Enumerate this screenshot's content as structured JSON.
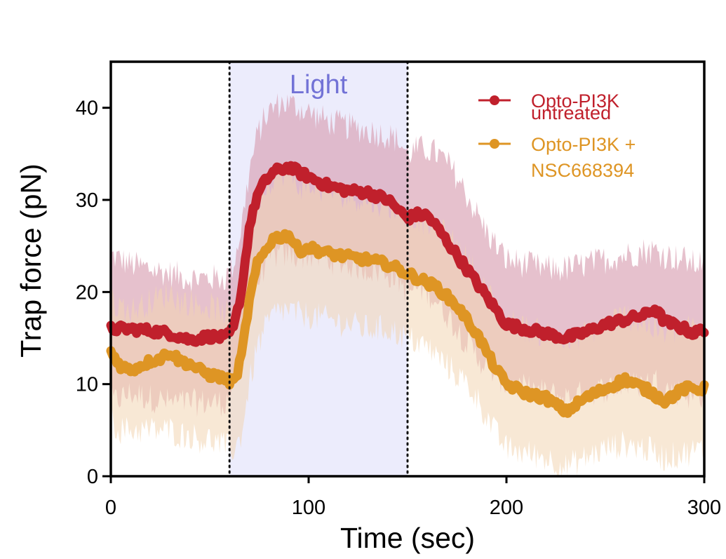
{
  "chart_data": {
    "type": "line",
    "title": "",
    "xlabel": "Time (sec)",
    "ylabel": "Trap force (pN)",
    "xlim": [
      0,
      300
    ],
    "ylim": [
      0,
      45
    ],
    "x_ticks": [
      0,
      100,
      200,
      300
    ],
    "y_ticks": [
      0,
      10,
      20,
      30,
      40
    ],
    "x_tick_labels": [
      "0",
      "100",
      "200",
      "300"
    ],
    "y_tick_labels": [
      "0",
      "10",
      "20",
      "30",
      "40"
    ],
    "grid": false,
    "legend_position": "top-right",
    "annotation": {
      "label": "Light",
      "x_start": 60,
      "x_end": 150,
      "shade_color": "#ececfc",
      "text_color": "#7272d6"
    },
    "series": [
      {
        "name": "Opto-PI3K untreated",
        "legend_lines": [
          "Opto-PI3K",
          "untreated"
        ],
        "color": "#c0202c",
        "band_color": "#d9a0b2",
        "x": [
          0,
          10,
          20,
          30,
          40,
          50,
          58,
          62,
          66,
          70,
          74,
          78,
          82,
          86,
          90,
          95,
          100,
          110,
          120,
          130,
          140,
          145,
          150,
          155,
          160,
          165,
          170,
          175,
          180,
          185,
          190,
          195,
          200,
          210,
          220,
          230,
          240,
          250,
          260,
          270,
          275,
          280,
          290,
          295,
          300
        ],
        "mean": [
          16,
          16,
          15.8,
          15.5,
          14.8,
          15.2,
          15,
          16,
          20,
          27,
          30.5,
          32,
          33,
          33.3,
          33.6,
          33,
          32.5,
          31.5,
          31,
          30.8,
          30,
          29,
          28,
          28.4,
          28.3,
          27,
          25.5,
          24,
          22.5,
          21,
          19.5,
          18,
          16.5,
          16,
          15.5,
          15,
          15.6,
          16.5,
          17,
          17.5,
          18.2,
          16.8,
          16,
          15.5,
          16
        ],
        "lower": [
          8,
          9,
          8.5,
          8,
          8,
          8,
          8,
          10,
          14,
          18,
          21,
          23,
          24,
          24,
          24,
          24,
          24,
          23.5,
          23,
          22.5,
          22,
          21.5,
          20,
          20.5,
          20,
          19,
          17.5,
          16,
          14.5,
          13,
          12,
          11,
          10,
          9.5,
          9,
          8.5,
          9,
          9.5,
          10,
          10,
          10.5,
          9.5,
          9,
          8.5,
          9
        ],
        "upper": [
          24,
          23,
          22.5,
          22,
          21.5,
          21.5,
          21.5,
          23,
          27,
          33,
          37,
          39,
          40,
          40.5,
          40.5,
          40,
          39.5,
          38.5,
          38,
          37.5,
          37,
          36.5,
          35,
          35.5,
          35.5,
          35,
          34,
          32.5,
          30.5,
          28.5,
          26.5,
          25,
          23.5,
          23,
          22.5,
          22.5,
          23,
          23.5,
          24,
          24.5,
          24.5,
          24,
          23.5,
          23,
          23.5
        ]
      },
      {
        "name": "Opto-PI3K + NSC668394",
        "legend_lines": [
          "Opto-PI3K +",
          "NSC668394"
        ],
        "color": "#de9524",
        "band_color": "#f3d5b2",
        "x": [
          0,
          5,
          10,
          15,
          20,
          25,
          30,
          35,
          40,
          45,
          50,
          55,
          60,
          63,
          66,
          70,
          74,
          78,
          82,
          86,
          90,
          95,
          100,
          110,
          120,
          130,
          140,
          145,
          150,
          155,
          160,
          165,
          170,
          175,
          180,
          185,
          190,
          195,
          200,
          210,
          220,
          230,
          240,
          250,
          260,
          270,
          280,
          290,
          300
        ],
        "mean": [
          13.5,
          12,
          11.5,
          12,
          12.5,
          12.8,
          13.5,
          12.5,
          12.2,
          11.5,
          11,
          10.8,
          10.3,
          10.5,
          13,
          19,
          23,
          24.5,
          25.8,
          26,
          26.2,
          24.5,
          24.8,
          24.2,
          23.8,
          23.5,
          23,
          22.5,
          22,
          21.5,
          21,
          20.5,
          19.5,
          18.5,
          17,
          15.5,
          13.5,
          11.5,
          10,
          9,
          8.5,
          7,
          8.5,
          9.5,
          10.5,
          9.5,
          8.2,
          9.5,
          9.5
        ],
        "lower": [
          6,
          5,
          5,
          5,
          5,
          5,
          5,
          4.5,
          4.5,
          4,
          4,
          3.5,
          3,
          3,
          4.5,
          10,
          14,
          16,
          17.5,
          18,
          18,
          17.5,
          17.5,
          17,
          16.5,
          16,
          16,
          15.5,
          15,
          14.5,
          14,
          13,
          12,
          11,
          10,
          8.5,
          6.5,
          4.5,
          3,
          2.5,
          2,
          1,
          2,
          3,
          3.5,
          3,
          2,
          2.5,
          3
        ],
        "upper": [
          19,
          18.5,
          18,
          18.5,
          19,
          19.5,
          20,
          19,
          19,
          18.5,
          18.5,
          18,
          17.5,
          17.5,
          20,
          26,
          30,
          31.5,
          32.5,
          33,
          33,
          31.5,
          31.5,
          31,
          30.5,
          30,
          29.5,
          29,
          28.5,
          28,
          27.5,
          27,
          26,
          25,
          23.5,
          22,
          20,
          18.5,
          17,
          16,
          15.5,
          14.5,
          15.5,
          16.5,
          17.5,
          16.5,
          15.5,
          16,
          16
        ]
      }
    ]
  }
}
